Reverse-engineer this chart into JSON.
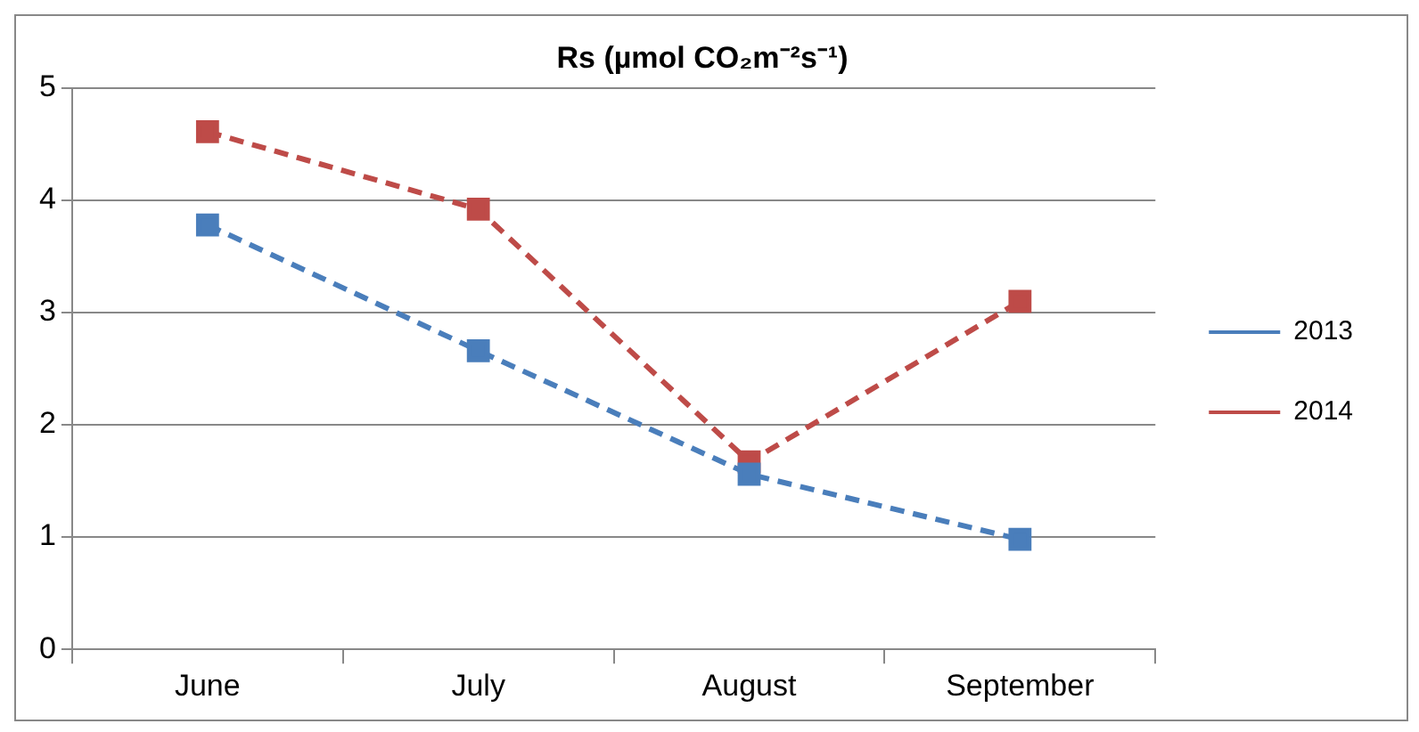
{
  "chart_data": {
    "type": "line",
    "title": "Rs (µmol CO₂m⁻²s⁻¹)",
    "categories": [
      "June",
      "July",
      "August",
      "September"
    ],
    "series": [
      {
        "name": "2013",
        "color": "#4a7ebb",
        "values": [
          3.78,
          2.66,
          1.56,
          0.98
        ]
      },
      {
        "name": "2014",
        "color": "#be4b48",
        "values": [
          4.61,
          3.92,
          1.67,
          3.1
        ]
      }
    ],
    "ylim": [
      0,
      5
    ],
    "yticks": [
      0,
      1,
      2,
      3,
      4,
      5
    ],
    "grid": "y",
    "legend": "right",
    "marker": "square",
    "line_style": "dashed"
  }
}
